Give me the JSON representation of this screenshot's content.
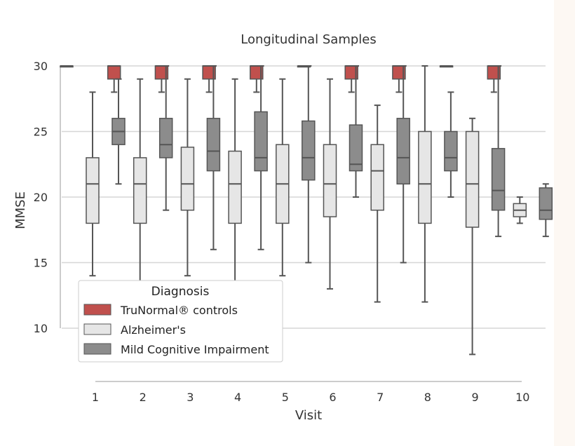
{
  "chart_data": {
    "type": "box",
    "title": "Longitudinal Samples",
    "xlabel": "Visit",
    "ylabel": "MMSE",
    "categories": [
      "1",
      "2",
      "3",
      "4",
      "5",
      "6",
      "7",
      "8",
      "9",
      "10"
    ],
    "yticks": [
      10,
      15,
      20,
      25,
      30
    ],
    "ylim": [
      7,
      31
    ],
    "grid": "horizontal",
    "legend": {
      "title": "Diagnosis",
      "position": "lower-left",
      "entries": [
        "TruNormal® controls",
        "Alzheimer's",
        "Mild Cognitive Impairment"
      ]
    },
    "series": [
      {
        "name": "TruNormal® controls",
        "color": "#c0504d",
        "boxes": [
          {
            "visit": "1",
            "min": 30,
            "q1": 30,
            "median": 30,
            "q3": 30,
            "max": 30
          },
          {
            "visit": "2",
            "min": 28,
            "q1": 29,
            "median": 30,
            "q3": 30,
            "max": 30
          },
          {
            "visit": "3",
            "min": 28,
            "q1": 29,
            "median": 30,
            "q3": 30,
            "max": 30
          },
          {
            "visit": "4",
            "min": 28,
            "q1": 29,
            "median": 30,
            "q3": 30,
            "max": 30
          },
          {
            "visit": "5",
            "min": 28,
            "q1": 29,
            "median": 30,
            "q3": 30,
            "max": 30
          },
          {
            "visit": "6",
            "min": 30,
            "q1": 30,
            "median": 30,
            "q3": 30,
            "max": 30
          },
          {
            "visit": "7",
            "min": 28,
            "q1": 29,
            "median": 30,
            "q3": 30,
            "max": 30
          },
          {
            "visit": "8",
            "min": 28,
            "q1": 29,
            "median": 30,
            "q3": 30,
            "max": 30
          },
          {
            "visit": "9",
            "min": 30,
            "q1": 30,
            "median": 30,
            "q3": 30,
            "max": 30
          },
          {
            "visit": "10",
            "min": 28,
            "q1": 29,
            "median": 30,
            "q3": 30,
            "max": 30
          }
        ]
      },
      {
        "name": "Alzheimer's",
        "color": "#e6e6e6",
        "boxes": [
          {
            "visit": "1",
            "min": 14,
            "q1": 18,
            "median": 21,
            "q3": 23,
            "max": 28
          },
          {
            "visit": "2",
            "min": 13,
            "q1": 18,
            "median": 21,
            "q3": 23,
            "max": 29
          },
          {
            "visit": "3",
            "min": 14,
            "q1": 19,
            "median": 21,
            "q3": 23.8,
            "max": 29
          },
          {
            "visit": "4",
            "min": 13,
            "q1": 18,
            "median": 21,
            "q3": 23.5,
            "max": 29
          },
          {
            "visit": "5",
            "min": 14,
            "q1": 18,
            "median": 21,
            "q3": 24,
            "max": 29
          },
          {
            "visit": "6",
            "min": 13,
            "q1": 18.5,
            "median": 21,
            "q3": 24,
            "max": 29
          },
          {
            "visit": "7",
            "min": 12,
            "q1": 19,
            "median": 22,
            "q3": 24,
            "max": 27
          },
          {
            "visit": "8",
            "min": 12,
            "q1": 18,
            "median": 21,
            "q3": 25,
            "max": 30
          },
          {
            "visit": "9",
            "min": 8,
            "q1": 17.7,
            "median": 21,
            "q3": 25,
            "max": 26
          },
          {
            "visit": "10",
            "min": 18,
            "q1": 18.5,
            "median": 19,
            "q3": 19.5,
            "max": 20
          }
        ]
      },
      {
        "name": "Mild Cognitive Impairment",
        "color": "#8c8c8c",
        "boxes": [
          {
            "visit": "1",
            "min": 21,
            "q1": 24,
            "median": 25,
            "q3": 26,
            "max": 29
          },
          {
            "visit": "2",
            "min": 19,
            "q1": 23,
            "median": 24,
            "q3": 26,
            "max": 30
          },
          {
            "visit": "3",
            "min": 16,
            "q1": 22,
            "median": 23.5,
            "q3": 26,
            "max": 30
          },
          {
            "visit": "4",
            "min": 16,
            "q1": 22,
            "median": 23,
            "q3": 26.5,
            "max": 30
          },
          {
            "visit": "5",
            "min": 15,
            "q1": 21.3,
            "median": 23,
            "q3": 25.8,
            "max": 30
          },
          {
            "visit": "6",
            "min": 20,
            "q1": 22,
            "median": 22.5,
            "q3": 25.5,
            "max": 30
          },
          {
            "visit": "7",
            "min": 15,
            "q1": 21,
            "median": 23,
            "q3": 26,
            "max": 30
          },
          {
            "visit": "8",
            "min": 20,
            "q1": 22,
            "median": 23,
            "q3": 25,
            "max": 28
          },
          {
            "visit": "9",
            "min": 17,
            "q1": 19,
            "median": 20.5,
            "q3": 23.7,
            "max": 30
          },
          {
            "visit": "10",
            "min": 17,
            "q1": 18.3,
            "median": 19,
            "q3": 20.7,
            "max": 21
          }
        ]
      }
    ]
  }
}
